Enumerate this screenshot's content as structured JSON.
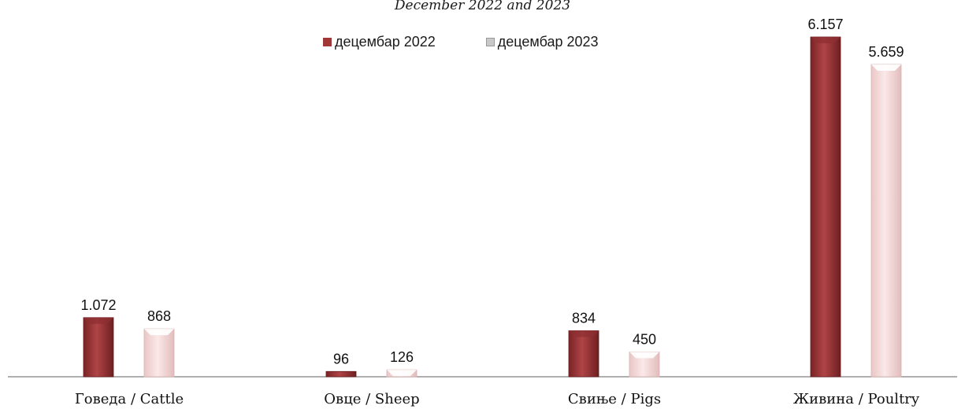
{
  "chart_data": {
    "type": "bar",
    "title": "",
    "subtitle": "December 2022 and 2023",
    "xlabel": "",
    "ylabel": "",
    "categories": [
      "Говеда / Cattle",
      "Овце / Sheep",
      "Свиње / Pigs",
      "Живина / Poultry"
    ],
    "series": [
      {
        "name": "децембар 2022",
        "values": [
          1072,
          96,
          834,
          6157
        ],
        "labels": [
          "1.072",
          "96",
          "834",
          "6.157"
        ],
        "color": "#a0383a"
      },
      {
        "name": "децембар 2023",
        "values": [
          868,
          126,
          450,
          5659
        ],
        "labels": [
          "868",
          "126",
          "450",
          "5.659"
        ],
        "color": "#f7dada"
      }
    ],
    "ylim": [
      0,
      6157
    ],
    "grid": false,
    "legend_position": "top-center"
  }
}
